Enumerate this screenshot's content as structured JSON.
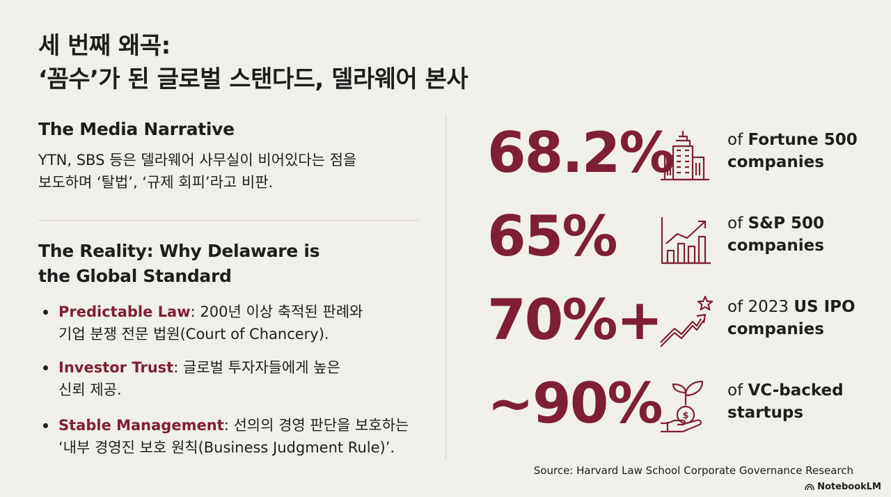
{
  "title": {
    "line1": "세 번째 왜곡:",
    "line2": "‘꼼수’가 된 글로벌 스탠다드, 델라웨어 본사"
  },
  "media": {
    "heading": "The Media Narrative",
    "text_line1": "YTN, SBS 등은 델라웨어 사무실이 비어있다는 점을",
    "text_line2": "보도하며 ‘탈법’, ‘규제 회피’라고 비판."
  },
  "reality": {
    "heading_line1": "The Reality: Why Delaware is",
    "heading_line2": "the Global Standard",
    "bullets": [
      {
        "keyword": "Predictable Law",
        "line1": ": 200년 이상 축적된 판례와",
        "line2": "기업 분쟁 전문 법원(Court of Chancery)."
      },
      {
        "keyword": "Investor Trust",
        "line1": ": 글로벌 투자자들에게 높은",
        "line2": "신뢰 제공."
      },
      {
        "keyword": "Stable Management",
        "line1": ": 선의의 경영 판단을 보호하는",
        "line2": "‘내부 경영진 보호 원칙(Business Judgment Rule)’."
      }
    ]
  },
  "stats": [
    {
      "value": "68.2%",
      "icon": "office-building-icon",
      "pre": "of ",
      "bold": "Fortune 500",
      "line2": "companies"
    },
    {
      "value": "65%",
      "icon": "bar-chart-up-icon",
      "pre": "of ",
      "bold": "S&P 500",
      "line2": "companies"
    },
    {
      "value": "70%+",
      "icon": "trend-arrow-star-icon",
      "pre": "of 2023 ",
      "bold": "US IPO",
      "line2": "companies"
    },
    {
      "value": "~90%",
      "icon": "money-plant-hand-icon",
      "pre": "of ",
      "bold": "VC-backed",
      "line2": "startups"
    }
  ],
  "source": "Source: Harvard Law School Corporate Governance Research",
  "brand": "NotebookLM",
  "colors": {
    "accent": "#7e1f35",
    "background": "#f1efe9",
    "text": "#1e1e1e"
  }
}
